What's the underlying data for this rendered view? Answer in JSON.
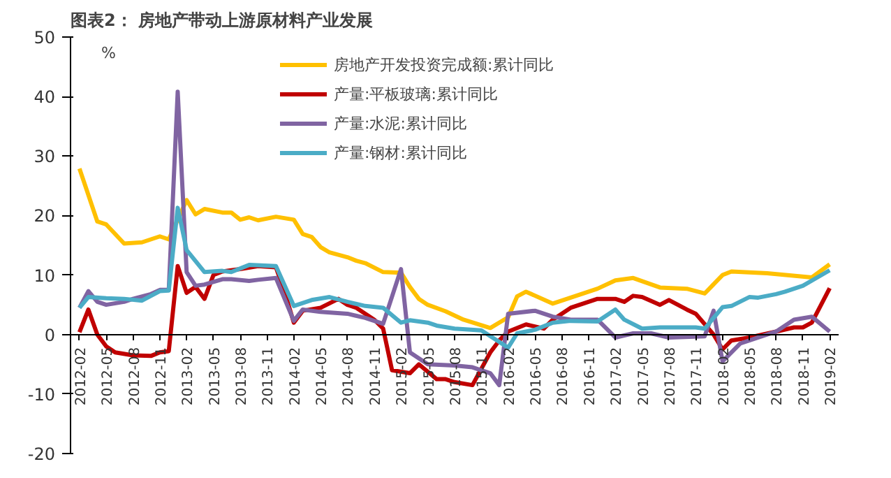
{
  "chart_data": {
    "type": "line",
    "title": "图表2：  房地产带动上游原材料产业发展",
    "ylabel": "%",
    "xlim": [
      "2012-01",
      "2019-03"
    ],
    "ylim": [
      -20,
      50
    ],
    "yticks": [
      -20,
      -10,
      0,
      10,
      20,
      30,
      40,
      50
    ],
    "xticks": [
      "2012-02",
      "2012-05",
      "2012-08",
      "2012-11",
      "2013-02",
      "2013-05",
      "2013-08",
      "2013-11",
      "2014-02",
      "2014-05",
      "2014-08",
      "2014-11",
      "2015-02",
      "2015-05",
      "2015-08",
      "2015-11",
      "2016-02",
      "2016-05",
      "2016-08",
      "2016-11",
      "2017-02",
      "2017-05",
      "2017-08",
      "2017-11",
      "2018-02",
      "2018-05",
      "2018-08",
      "2018-11",
      "2019-02"
    ],
    "grid": false,
    "legend": "top",
    "line_style": "solid",
    "marker": "none",
    "series": [
      {
        "name": "房地产开发投资完成额:累计同比",
        "color": "#ffc000",
        "x": [
          "2012-02",
          "2012-04",
          "2012-05",
          "2012-07",
          "2012-09",
          "2012-11",
          "2012-12",
          "2013-02",
          "2013-03",
          "2013-04",
          "2013-06",
          "2013-07",
          "2013-08",
          "2013-09",
          "2013-10",
          "2013-12",
          "2014-02",
          "2014-03",
          "2014-04",
          "2014-05",
          "2014-06",
          "2014-08",
          "2014-09",
          "2014-10",
          "2014-12",
          "2015-02",
          "2015-03",
          "2015-04",
          "2015-05",
          "2015-07",
          "2015-09",
          "2015-12",
          "2016-02",
          "2016-03",
          "2016-04",
          "2016-07",
          "2016-10",
          "2016-12",
          "2017-02",
          "2017-04",
          "2017-07",
          "2017-10",
          "2017-12",
          "2018-02",
          "2018-03",
          "2018-07",
          "2018-12",
          "2019-02"
        ],
        "values": [
          27.9,
          19,
          18.5,
          15.3,
          15.5,
          16.5,
          16.0,
          22.6,
          20.2,
          21.1,
          20.5,
          20.5,
          19.3,
          19.7,
          19.2,
          19.8,
          19.3,
          16.9,
          16.4,
          14.7,
          13.8,
          13.0,
          12.4,
          12.0,
          10.5,
          10.4,
          8.0,
          6.0,
          5.0,
          3.9,
          2.5,
          1.1,
          2.9,
          6.4,
          7.2,
          5.2,
          6.7,
          7.7,
          9.1,
          9.5,
          7.9,
          7.7,
          6.9,
          10.0,
          10.6,
          10.3,
          9.6,
          11.8
        ]
      },
      {
        "name": "产量:平板玻璃:累计同比",
        "color": "#c00000",
        "x": [
          "2012-02",
          "2012-03",
          "2012-04",
          "2012-05",
          "2012-06",
          "2012-08",
          "2012-10",
          "2012-11",
          "2012-12",
          "2013-01",
          "2013-02",
          "2013-03",
          "2013-04",
          "2013-05",
          "2013-06",
          "2013-08",
          "2013-10",
          "2013-12",
          "2014-01",
          "2014-02",
          "2014-03",
          "2014-05",
          "2014-07",
          "2014-08",
          "2014-09",
          "2014-10",
          "2014-11",
          "2014-12",
          "2015-01",
          "2015-03",
          "2015-04",
          "2015-06",
          "2015-07",
          "2015-08",
          "2015-10",
          "2015-12",
          "2016-01",
          "2016-02",
          "2016-04",
          "2016-06",
          "2016-07",
          "2016-09",
          "2016-11",
          "2016-12",
          "2017-02",
          "2017-03",
          "2017-04",
          "2017-05",
          "2017-07",
          "2017-08",
          "2017-10",
          "2017-11",
          "2018-01",
          "2018-02",
          "2018-03",
          "2018-05",
          "2018-08",
          "2018-10",
          "2018-11",
          "2018-12",
          "2019-02"
        ],
        "values": [
          0.4,
          4.2,
          0,
          -2,
          -3,
          -3.5,
          -3.6,
          -3,
          -2.8,
          11.5,
          7,
          8,
          6,
          10,
          10.6,
          11,
          11.5,
          11.3,
          7,
          2,
          4,
          4.5,
          6,
          5,
          4.5,
          3.5,
          2.5,
          1.0,
          -6.0,
          -6.5,
          -5.0,
          -7.5,
          -7.5,
          -8,
          -8.5,
          -3,
          -1,
          0.5,
          1.7,
          1.0,
          2.5,
          4.5,
          5.5,
          6,
          6,
          5.5,
          6.5,
          6.3,
          5,
          5.8,
          4.2,
          3.5,
          0,
          -2.5,
          -1,
          -0.5,
          0.5,
          1.2,
          1.2,
          2.0,
          7.8
        ]
      },
      {
        "name": "产量:水泥:累计同比",
        "color": "#8064a2",
        "x": [
          "2012-02",
          "2012-03",
          "2012-04",
          "2012-05",
          "2012-07",
          "2012-08",
          "2012-10",
          "2012-11",
          "2012-12",
          "2013-01",
          "2013-02",
          "2013-03",
          "2013-04",
          "2013-06",
          "2013-07",
          "2013-09",
          "2013-10",
          "2013-12",
          "2014-02",
          "2014-03",
          "2014-05",
          "2014-08",
          "2014-10",
          "2014-12",
          "2015-02",
          "2015-03",
          "2015-05",
          "2015-08",
          "2015-10",
          "2015-12",
          "2016-01",
          "2016-02",
          "2016-05",
          "2016-07",
          "2016-09",
          "2016-12",
          "2017-02",
          "2017-04",
          "2017-06",
          "2017-08",
          "2017-12",
          "2018-01",
          "2018-02",
          "2018-04",
          "2018-06",
          "2018-08",
          "2018-10",
          "2018-12",
          "2019-02"
        ],
        "values": [
          4.5,
          7.3,
          5.5,
          5,
          5.5,
          6,
          6.8,
          7.5,
          7.5,
          40.8,
          10.5,
          8.2,
          8.4,
          9.3,
          9.3,
          9.0,
          9.2,
          9.5,
          2.3,
          4.2,
          3.8,
          3.5,
          2.8,
          1.8,
          11,
          -3,
          -5,
          -5.2,
          -5.5,
          -6.5,
          -8.5,
          3.5,
          4,
          3,
          2.5,
          2.5,
          -0.5,
          0.2,
          0.2,
          -0.5,
          -0.3,
          4,
          -4.5,
          -1.5,
          -0.5,
          0.5,
          2.5,
          3,
          0.5
        ]
      },
      {
        "name": "产量:钢材:累计同比",
        "color": "#4bacc6",
        "x": [
          "2012-02",
          "2012-03",
          "2012-05",
          "2012-07",
          "2012-09",
          "2012-10",
          "2012-11",
          "2012-12",
          "2013-01",
          "2013-02",
          "2013-04",
          "2013-06",
          "2013-07",
          "2013-09",
          "2013-12",
          "2014-02",
          "2014-04",
          "2014-06",
          "2014-08",
          "2014-10",
          "2014-12",
          "2015-02",
          "2015-03",
          "2015-05",
          "2015-06",
          "2015-08",
          "2015-11",
          "2016-02",
          "2016-03",
          "2016-05",
          "2016-07",
          "2016-09",
          "2016-12",
          "2017-02",
          "2017-03",
          "2017-05",
          "2017-07",
          "2017-11",
          "2017-12",
          "2018-02",
          "2018-03",
          "2018-05",
          "2018-06",
          "2018-08",
          "2018-09",
          "2018-11",
          "2019-02"
        ],
        "values": [
          4.5,
          6.3,
          6.1,
          6.0,
          5.7,
          6.5,
          7.3,
          7.4,
          21.3,
          14.2,
          10.5,
          10.7,
          10.5,
          11.7,
          11.5,
          4.8,
          5.8,
          6.3,
          5.5,
          4.8,
          4.5,
          2.0,
          2.4,
          2.0,
          1.5,
          1.0,
          0.7,
          -2.2,
          0.2,
          0.8,
          2.0,
          2.3,
          2.2,
          4.2,
          2.5,
          1.0,
          1.2,
          1.2,
          1.0,
          4.6,
          4.8,
          6.3,
          6.2,
          6.8,
          7.2,
          8.2,
          10.8
        ]
      }
    ]
  }
}
